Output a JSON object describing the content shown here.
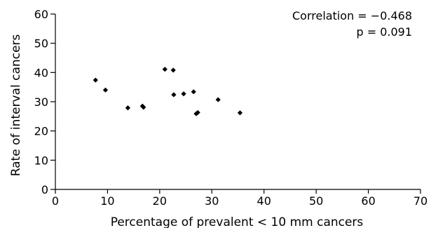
{
  "chart_data": {
    "type": "scatter",
    "xlabel": "Percentage of prevalent < 10 mm cancers",
    "ylabel": "Rate of interval cancers",
    "xlim": [
      0,
      70
    ],
    "ylim": [
      0,
      60
    ],
    "xticks": [
      "0",
      "10",
      "20",
      "30",
      "40",
      "50",
      "60",
      "70"
    ],
    "yticks": [
      "0",
      "10",
      "20",
      "30",
      "40",
      "50",
      "60"
    ],
    "grid": false,
    "annotations": [
      "Correlation = −0.468",
      "p = 0.091"
    ],
    "marker_color": "#000000",
    "points": [
      {
        "x": 7.7,
        "y": 37.4
      },
      {
        "x": 9.6,
        "y": 34.0
      },
      {
        "x": 13.9,
        "y": 27.9
      },
      {
        "x": 16.7,
        "y": 28.5
      },
      {
        "x": 16.9,
        "y": 28.1
      },
      {
        "x": 21.0,
        "y": 41.1
      },
      {
        "x": 22.6,
        "y": 40.8
      },
      {
        "x": 22.7,
        "y": 32.4
      },
      {
        "x": 24.6,
        "y": 32.7
      },
      {
        "x": 26.5,
        "y": 33.4
      },
      {
        "x": 27.0,
        "y": 25.9
      },
      {
        "x": 27.3,
        "y": 26.3
      },
      {
        "x": 31.2,
        "y": 30.7
      },
      {
        "x": 35.4,
        "y": 26.2
      }
    ]
  }
}
